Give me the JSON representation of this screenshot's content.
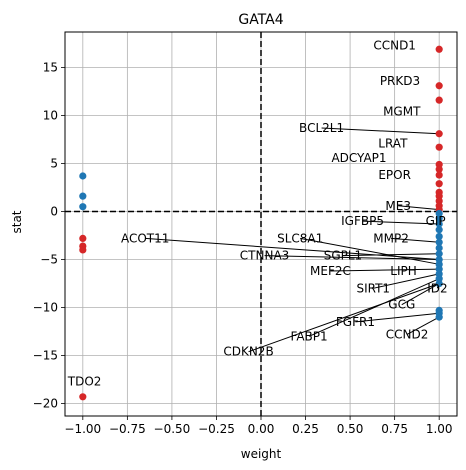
{
  "chart_data": {
    "type": "scatter",
    "title": "GATA4",
    "xlabel": "weight",
    "ylabel": "stat",
    "xlim": [
      -1.1,
      1.1
    ],
    "ylim": [
      -21.3,
      18.7
    ],
    "xticks": [
      -1.0,
      -0.75,
      -0.5,
      -0.25,
      0.0,
      0.25,
      0.5,
      0.75,
      1.0
    ],
    "xtick_labels": [
      "−1.00",
      "−0.75",
      "−0.50",
      "−0.25",
      "0.00",
      "0.25",
      "0.50",
      "0.75",
      "1.00"
    ],
    "yticks": [
      -20,
      -15,
      -10,
      -5,
      0,
      5,
      10,
      15
    ],
    "ytick_labels": [
      "−20",
      "−15",
      "−10",
      "−5",
      "0",
      "5",
      "10",
      "15"
    ],
    "grid": true,
    "reference_lines": {
      "x": 0,
      "y": 0,
      "style": "dashed"
    },
    "colors": {
      "positive_weight": "#d62728",
      "negative_weight": "#1f77b4"
    },
    "series": [
      {
        "color": "#d62728",
        "points": [
          {
            "x": -1.0,
            "y": -2.8
          },
          {
            "x": -1.0,
            "y": -3.6
          },
          {
            "x": -1.0,
            "y": -4.0
          },
          {
            "x": -1.0,
            "y": -19.3
          },
          {
            "x": 1.0,
            "y": 16.9
          },
          {
            "x": 1.0,
            "y": 13.1
          },
          {
            "x": 1.0,
            "y": 11.6
          },
          {
            "x": 1.0,
            "y": 8.1
          },
          {
            "x": 1.0,
            "y": 6.7
          },
          {
            "x": 1.0,
            "y": 4.9
          },
          {
            "x": 1.0,
            "y": 4.4
          },
          {
            "x": 1.0,
            "y": 3.8
          },
          {
            "x": 1.0,
            "y": 2.9
          },
          {
            "x": 1.0,
            "y": 2.0
          },
          {
            "x": 1.0,
            "y": 1.6
          },
          {
            "x": 1.0,
            "y": 1.1
          },
          {
            "x": 1.0,
            "y": 0.6
          },
          {
            "x": 1.0,
            "y": 0.2
          }
        ]
      },
      {
        "color": "#1f77b4",
        "points": [
          {
            "x": -1.0,
            "y": 3.7
          },
          {
            "x": -1.0,
            "y": 1.6
          },
          {
            "x": -1.0,
            "y": 0.5
          },
          {
            "x": 1.0,
            "y": -0.2
          },
          {
            "x": 1.0,
            "y": -0.7
          },
          {
            "x": 1.0,
            "y": -1.3
          },
          {
            "x": 1.0,
            "y": -1.9
          },
          {
            "x": 1.0,
            "y": -2.6
          },
          {
            "x": 1.0,
            "y": -3.2
          },
          {
            "x": 1.0,
            "y": -3.8
          },
          {
            "x": 1.0,
            "y": -4.4
          },
          {
            "x": 1.0,
            "y": -5.0
          },
          {
            "x": 1.0,
            "y": -5.5
          },
          {
            "x": 1.0,
            "y": -6.0
          },
          {
            "x": 1.0,
            "y": -6.5
          },
          {
            "x": 1.0,
            "y": -7.0
          },
          {
            "x": 1.0,
            "y": -7.5
          },
          {
            "x": 1.0,
            "y": -10.3
          },
          {
            "x": 1.0,
            "y": -10.6
          },
          {
            "x": 1.0,
            "y": -11.0
          }
        ]
      }
    ],
    "annotations": [
      {
        "text": "CCND1",
        "point": [
          1.0,
          16.9
        ],
        "label_at": [
          0.75,
          17.3
        ],
        "arrow": false
      },
      {
        "text": "PRKD3",
        "point": [
          1.0,
          13.1
        ],
        "label_at": [
          0.78,
          13.6
        ],
        "arrow": false
      },
      {
        "text": "MGMT",
        "point": [
          1.0,
          11.6
        ],
        "label_at": [
          0.79,
          10.4
        ],
        "arrow": false
      },
      {
        "text": "BCL2L1",
        "point": [
          1.0,
          8.1
        ],
        "label_at": [
          0.34,
          8.7
        ],
        "arrow": true
      },
      {
        "text": "LRAT",
        "point": [
          1.0,
          6.7
        ],
        "label_at": [
          0.74,
          7.1
        ],
        "arrow": false
      },
      {
        "text": "ADCYAP1",
        "point": [
          1.0,
          4.9
        ],
        "label_at": [
          0.55,
          5.6
        ],
        "arrow": false
      },
      {
        "text": "EPOR",
        "point": [
          1.0,
          3.8
        ],
        "label_at": [
          0.75,
          3.8
        ],
        "arrow": false
      },
      {
        "text": "ME3",
        "point": [
          1.0,
          0.2
        ],
        "label_at": [
          0.77,
          0.6
        ],
        "arrow": true
      },
      {
        "text": "IGFBP5",
        "point": [
          1.0,
          -1.3
        ],
        "label_at": [
          0.57,
          -1.0
        ],
        "arrow": true
      },
      {
        "text": "GIP",
        "point": [
          1.0,
          -0.7
        ],
        "label_at": [
          0.98,
          -1.0
        ],
        "arrow": false
      },
      {
        "text": "ACOT11",
        "point": [
          1.0,
          -5.0
        ],
        "label_at": [
          -0.65,
          -2.8
        ],
        "arrow": true
      },
      {
        "text": "SLC8A1",
        "point": [
          1.0,
          -5.5
        ],
        "label_at": [
          0.22,
          -2.8
        ],
        "arrow": true
      },
      {
        "text": "MMP2",
        "point": [
          1.0,
          -3.2
        ],
        "label_at": [
          0.73,
          -2.8
        ],
        "arrow": true
      },
      {
        "text": "CTNNA3",
        "point": [
          1.0,
          -5.0
        ],
        "label_at": [
          0.02,
          -4.6
        ],
        "arrow": true
      },
      {
        "text": "SGPL1",
        "point": [
          1.0,
          -4.4
        ],
        "label_at": [
          0.46,
          -4.6
        ],
        "arrow": true
      },
      {
        "text": "MEF2C",
        "point": [
          1.0,
          -6.0
        ],
        "label_at": [
          0.39,
          -6.2
        ],
        "arrow": true
      },
      {
        "text": "LIPH",
        "point": [
          1.0,
          -6.0
        ],
        "label_at": [
          0.8,
          -6.2
        ],
        "arrow": false
      },
      {
        "text": "SIRT1",
        "point": [
          1.0,
          -6.5
        ],
        "label_at": [
          0.63,
          -8.0
        ],
        "arrow": true
      },
      {
        "text": "ID2",
        "point": [
          1.0,
          -7.0
        ],
        "label_at": [
          0.99,
          -8.0
        ],
        "arrow": true
      },
      {
        "text": "GCG",
        "point": [
          1.0,
          -7.5
        ],
        "label_at": [
          0.79,
          -9.7
        ],
        "arrow": true
      },
      {
        "text": "FGFR1",
        "point": [
          1.0,
          -10.6
        ],
        "label_at": [
          0.53,
          -11.5
        ],
        "arrow": true
      },
      {
        "text": "FABP1",
        "point": [
          1.0,
          -7.0
        ],
        "label_at": [
          0.27,
          -13.0
        ],
        "arrow": true
      },
      {
        "text": "CCND2",
        "point": [
          1.0,
          -11.0
        ],
        "label_at": [
          0.82,
          -12.8
        ],
        "arrow": true
      },
      {
        "text": "CDKN2B",
        "point": [
          1.0,
          -7.5
        ],
        "label_at": [
          -0.07,
          -14.6
        ],
        "arrow": true
      },
      {
        "text": "TDO2",
        "point": [
          -1.0,
          -19.3
        ],
        "label_at": [
          -0.99,
          -17.7
        ],
        "arrow": false
      }
    ]
  }
}
